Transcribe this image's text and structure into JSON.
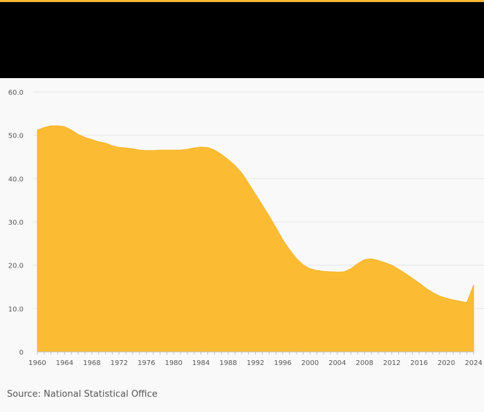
{
  "colors": {
    "accent": "#f7b731",
    "header": "#000000",
    "fill": "#fbbc33",
    "grid": "#e6e6e6",
    "tick_text": "#555555",
    "background": "#f9f9f9"
  },
  "source": "Source: National Statistical Office",
  "chart_data": {
    "type": "area",
    "title": "",
    "xlabel": "",
    "ylabel": "",
    "xlim": [
      1960,
      2024
    ],
    "ylim": [
      0,
      60
    ],
    "y_ticks": [
      "0",
      "10.0",
      "20.0",
      "30.0",
      "40.0",
      "50.0",
      "60.0"
    ],
    "x_ticks": [
      "1960",
      "1964",
      "1968",
      "1972",
      "1976",
      "1980",
      "1984",
      "1988",
      "1992",
      "1996",
      "2000",
      "2004",
      "2008",
      "2012",
      "2016",
      "2020",
      "2024"
    ],
    "grid": true,
    "legend": "none",
    "series": [
      {
        "name": "value",
        "x": [
          1960,
          1961,
          1962,
          1963,
          1964,
          1965,
          1966,
          1967,
          1968,
          1969,
          1970,
          1971,
          1972,
          1973,
          1974,
          1975,
          1976,
          1977,
          1978,
          1979,
          1980,
          1981,
          1982,
          1983,
          1984,
          1985,
          1986,
          1987,
          1988,
          1989,
          1990,
          1991,
          1992,
          1993,
          1994,
          1995,
          1996,
          1997,
          1998,
          1999,
          2000,
          2001,
          2002,
          2003,
          2004,
          2005,
          2006,
          2007,
          2008,
          2009,
          2010,
          2011,
          2012,
          2013,
          2014,
          2015,
          2016,
          2017,
          2018,
          2019,
          2020,
          2021,
          2022,
          2023,
          2024
        ],
        "values": [
          51.2,
          51.8,
          52.2,
          52.2,
          52.0,
          51.2,
          50.2,
          49.5,
          49.0,
          48.5,
          48.2,
          47.6,
          47.2,
          47.1,
          46.9,
          46.6,
          46.5,
          46.5,
          46.6,
          46.6,
          46.6,
          46.6,
          46.8,
          47.1,
          47.3,
          47.2,
          46.6,
          45.6,
          44.4,
          43.0,
          41.3,
          38.9,
          36.4,
          33.9,
          31.4,
          28.7,
          25.9,
          23.6,
          21.6,
          20.1,
          19.2,
          18.8,
          18.6,
          18.5,
          18.4,
          18.5,
          19.2,
          20.4,
          21.3,
          21.5,
          21.1,
          20.6,
          20.0,
          19.1,
          18.1,
          17.0,
          15.9,
          14.7,
          13.7,
          12.9,
          12.4,
          12.0,
          11.7,
          11.4,
          15.5
        ]
      }
    ]
  }
}
